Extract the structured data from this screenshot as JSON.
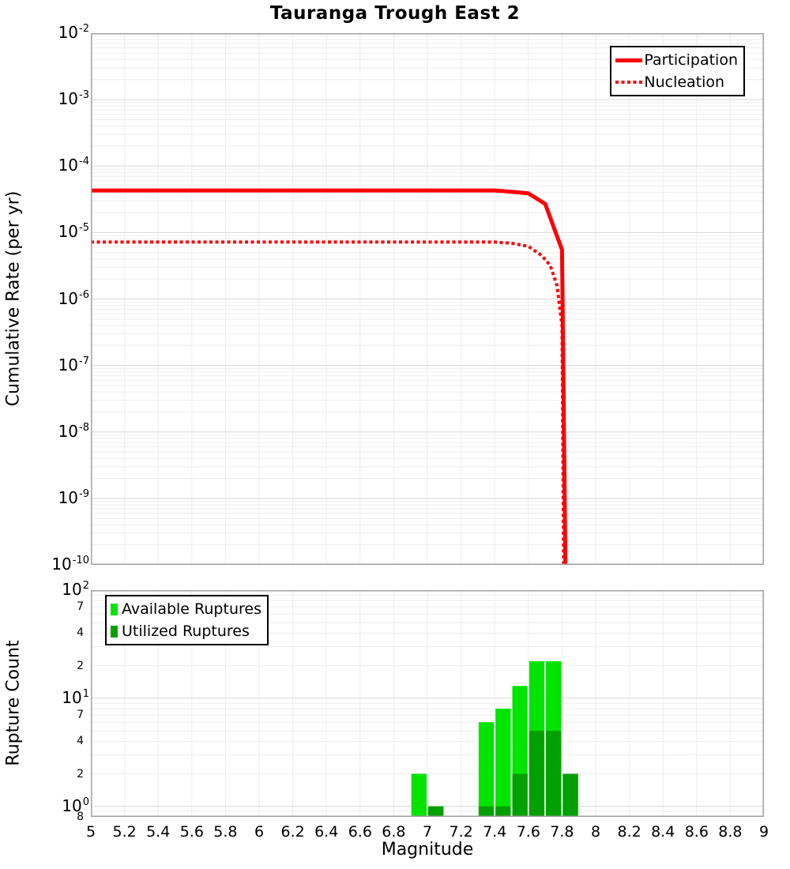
{
  "title": "Tauranga Trough East 2",
  "axis_format": {
    "base": "10"
  },
  "x_axis": {
    "label": "Magnitude",
    "tick_labels": [
      "5",
      "5.2",
      "5.4",
      "5.6",
      "5.8",
      "6",
      "6.2",
      "6.4",
      "6.6",
      "6.8",
      "7",
      "7.2",
      "7.4",
      "7.6",
      "7.8",
      "8",
      "8.2",
      "8.4",
      "8.6",
      "8.8",
      "9"
    ]
  },
  "colors": {
    "line_red": "#ff0000",
    "available_green": "#00e400",
    "utilized_green": "#00a000",
    "grid_minor": "#eeeeee",
    "grid_major": "#d8d8d8",
    "frame": "#a0a0a0"
  },
  "chart_data": [
    {
      "type": "line",
      "title": "Tauranga Trough East 2",
      "xlabel": "Magnitude",
      "ylabel": "Cumulative Rate (per yr)",
      "xscale": "linear",
      "yscale": "log",
      "xlim": [
        5,
        9
      ],
      "ylim": [
        1e-10,
        0.01
      ],
      "grid": true,
      "x_tick_step": 0.2,
      "y_tick_exponents": [
        -2,
        -3,
        -4,
        -5,
        -6,
        -7,
        -8,
        -9,
        -10
      ],
      "legend_position": "top-right",
      "series": [
        {
          "name": "Participation",
          "line_style": "solid",
          "color": "#ff0000",
          "width": 5,
          "points": [
            [
              5.0,
              4.3e-05
            ],
            [
              7.4,
              4.3e-05
            ],
            [
              7.5,
              4.1e-05
            ],
            [
              7.6,
              3.9e-05
            ],
            [
              7.7,
              2.7e-05
            ],
            [
              7.8,
              5.5e-06
            ],
            [
              7.82,
              1e-10
            ]
          ]
        },
        {
          "name": "Nucleation",
          "line_style": "dotted",
          "color": "#ff0000",
          "width": 4,
          "points": [
            [
              5.0,
              7.2e-06
            ],
            [
              7.4,
              7.2e-06
            ],
            [
              7.5,
              6.9e-06
            ],
            [
              7.6,
              6.2e-06
            ],
            [
              7.68,
              4.5e-06
            ],
            [
              7.73,
              3.2e-06
            ],
            [
              7.77,
              1.6e-06
            ],
            [
              7.8,
              4e-07
            ],
            [
              7.81,
              1e-10
            ]
          ]
        }
      ]
    },
    {
      "type": "bar",
      "xlabel": "Magnitude",
      "ylabel": "Rupture Count",
      "xscale": "linear",
      "yscale": "log",
      "xlim": [
        5,
        9
      ],
      "ylim": [
        0.8,
        100
      ],
      "grid": true,
      "bin_width": 0.1,
      "categories": [
        6.95,
        7.05,
        7.35,
        7.45,
        7.55,
        7.65,
        7.75,
        7.85
      ],
      "series": [
        {
          "name": "Available Ruptures",
          "color": "#00e400",
          "values": [
            2,
            1,
            6,
            8,
            13,
            22,
            22,
            2
          ]
        },
        {
          "name": "Utilized Ruptures",
          "color": "#00a000",
          "values": [
            0,
            1,
            1,
            1,
            2,
            5,
            5,
            2
          ]
        }
      ],
      "y_tick_exponents": [
        2,
        1,
        0
      ],
      "y_minor_tick_labels": [
        {
          "value": 70,
          "label": "7"
        },
        {
          "value": 40,
          "label": "4"
        },
        {
          "value": 20,
          "label": "2"
        },
        {
          "value": 7,
          "label": "7"
        },
        {
          "value": 4,
          "label": "4"
        },
        {
          "value": 2,
          "label": "2"
        },
        {
          "value": 0.8,
          "label": "8"
        }
      ],
      "legend_position": "top-left"
    }
  ]
}
